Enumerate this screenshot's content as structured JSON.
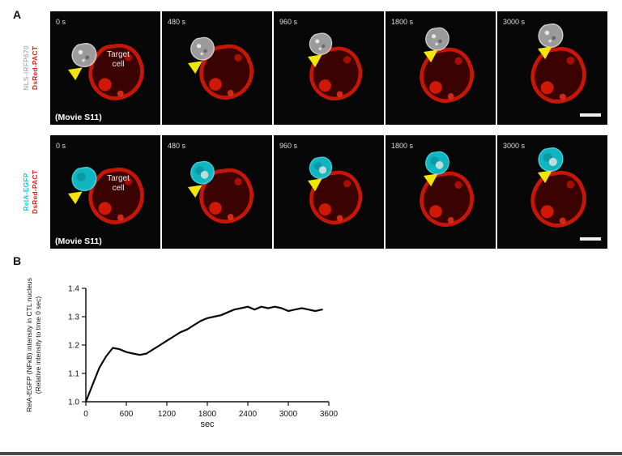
{
  "figure": {
    "panel_a_label": "A",
    "panel_b_label": "B"
  },
  "microscopy": {
    "timestamps": [
      "0 s",
      "480 s",
      "960 s",
      "1800 s",
      "3000 s"
    ],
    "arrow_color": "#f2e50e",
    "target_color": "#d11708",
    "rows": [
      {
        "label_top": "NLS-iRFP670",
        "label_bottom": "DsRed-PACT",
        "label_top_color": "#b5b5b5",
        "label_bottom_color": "#e32119",
        "movie_label": "(Movie S11)",
        "target_cell_label": "Target cell",
        "ctl_fill": "#a8a8a8",
        "ctl_stroke": "#dedede"
      },
      {
        "label_top": "RelA-EGFP",
        "label_bottom": "DsRed-PACT",
        "label_top_color": "#17c8d8",
        "label_bottom_color": "#e32119",
        "movie_label": "(Movie S11)",
        "target_cell_label": "Target cell",
        "ctl_fill": "#10c5d2",
        "ctl_stroke": "#49e2ec"
      }
    ]
  },
  "chart_data": {
    "type": "line",
    "title": "",
    "xlabel": "sec",
    "ylabel_line1": "RelA-EGFP (NFκB) intensity in CTL nucleus",
    "ylabel_line2": "(Relative intensity to time 0 sec)",
    "xlim": [
      0,
      3600
    ],
    "ylim": [
      1.0,
      1.4
    ],
    "xticks": [
      0,
      600,
      1200,
      1800,
      2400,
      3000,
      3600
    ],
    "yticks": [
      1.0,
      1.1,
      1.2,
      1.3,
      1.4
    ],
    "legend": null,
    "grid": false,
    "x": [
      0,
      100,
      200,
      300,
      400,
      500,
      600,
      700,
      800,
      900,
      1000,
      1100,
      1200,
      1300,
      1400,
      1500,
      1600,
      1700,
      1800,
      1900,
      2000,
      2100,
      2200,
      2300,
      2400,
      2500,
      2600,
      2700,
      2800,
      2900,
      3000,
      3100,
      3200,
      3300,
      3400,
      3500
    ],
    "y": [
      1.0,
      1.06,
      1.12,
      1.16,
      1.19,
      1.185,
      1.175,
      1.17,
      1.165,
      1.17,
      1.185,
      1.2,
      1.215,
      1.23,
      1.245,
      1.255,
      1.27,
      1.285,
      1.295,
      1.3,
      1.305,
      1.315,
      1.325,
      1.33,
      1.335,
      1.325,
      1.335,
      1.33,
      1.335,
      1.33,
      1.32,
      1.325,
      1.33,
      1.325,
      1.32,
      1.325
    ]
  }
}
